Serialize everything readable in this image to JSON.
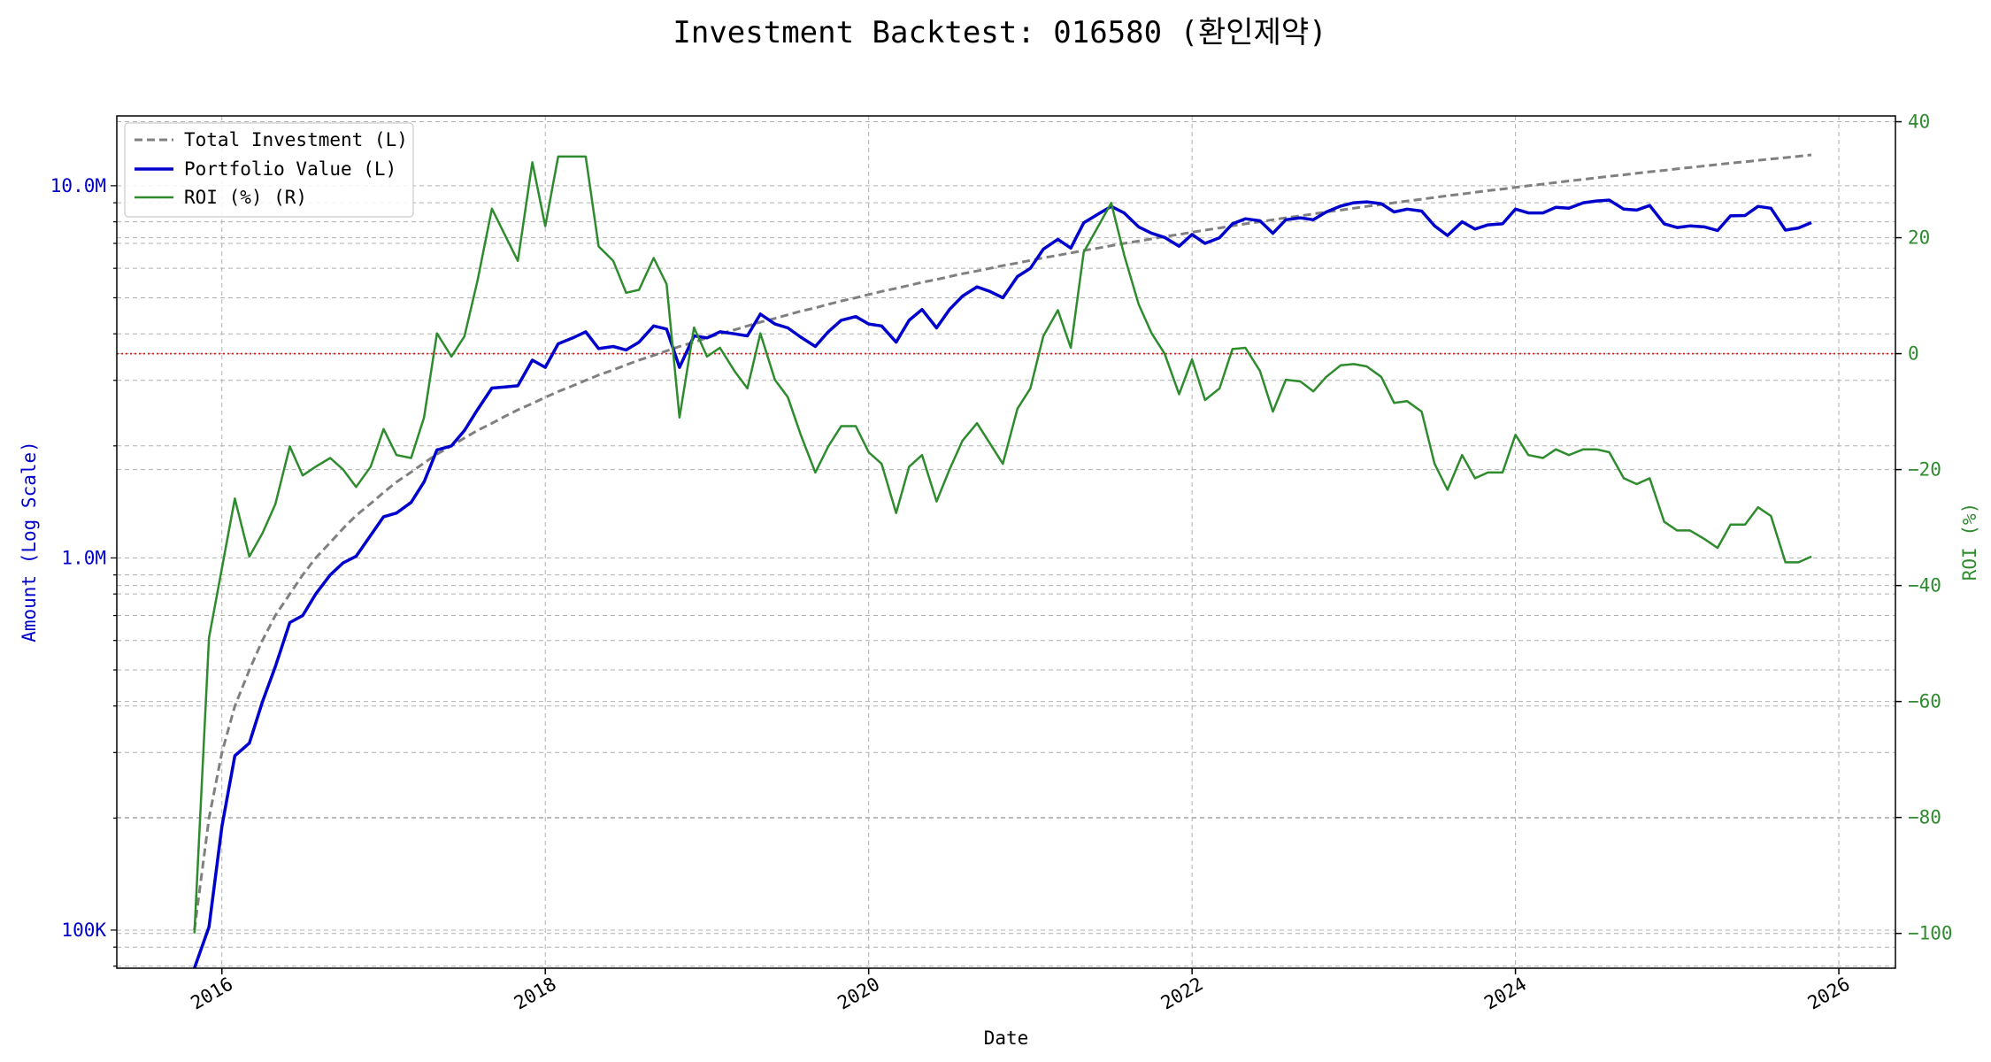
{
  "chart_data": {
    "type": "line",
    "title": "Investment Backtest: 016580 (환인제약)",
    "xlabel": "Date",
    "ylabel_left": "Amount (Log Scale)",
    "ylabel_right": "ROI (%)",
    "x_ticks": [
      "2016",
      "2018",
      "2020",
      "2022",
      "2024",
      "2026"
    ],
    "y_left_ticks": [
      {
        "value": 100000,
        "label": "100K"
      },
      {
        "value": 1000000,
        "label": "1.0M"
      },
      {
        "value": 10000000,
        "label": "10.0M"
      }
    ],
    "y_right_ticks": [
      -100,
      -80,
      -60,
      -40,
      -20,
      0,
      20,
      40
    ],
    "xlim": [
      2015.35,
      2026.35
    ],
    "ylim_left": [
      79000,
      15400000
    ],
    "ylim_right": [
      -106,
      41
    ],
    "yscale_left": "log",
    "grid": true,
    "legend_position": "top-left",
    "reference_line": {
      "axis": "right",
      "value": 0,
      "color": "#e41a1c",
      "style": "dotted"
    },
    "colors": {
      "total_investment": "#808080",
      "portfolio_value": "#0000cc",
      "roi": "#2e8b2e"
    },
    "x": [
      2015.83,
      2015.92,
      2016.0,
      2016.08,
      2016.17,
      2016.25,
      2016.33,
      2016.42,
      2016.5,
      2016.58,
      2016.67,
      2016.75,
      2016.83,
      2016.92,
      2017.0,
      2017.08,
      2017.17,
      2017.25,
      2017.33,
      2017.42,
      2017.5,
      2017.58,
      2017.67,
      2017.75,
      2017.83,
      2017.92,
      2018.0,
      2018.08,
      2018.17,
      2018.25,
      2018.33,
      2018.42,
      2018.5,
      2018.58,
      2018.67,
      2018.75,
      2018.83,
      2018.92,
      2019.0,
      2019.08,
      2019.17,
      2019.25,
      2019.33,
      2019.42,
      2019.5,
      2019.58,
      2019.67,
      2019.75,
      2019.83,
      2019.92,
      2020.0,
      2020.08,
      2020.17,
      2020.25,
      2020.33,
      2020.42,
      2020.5,
      2020.58,
      2020.67,
      2020.75,
      2020.83,
      2020.92,
      2021.0,
      2021.08,
      2021.17,
      2021.25,
      2021.33,
      2021.42,
      2021.5,
      2021.58,
      2021.67,
      2021.75,
      2021.83,
      2021.92,
      2022.0,
      2022.08,
      2022.17,
      2022.25,
      2022.33,
      2022.42,
      2022.5,
      2022.58,
      2022.67,
      2022.75,
      2022.83,
      2022.92,
      2023.0,
      2023.08,
      2023.17,
      2023.25,
      2023.33,
      2023.42,
      2023.5,
      2023.58,
      2023.67,
      2023.75,
      2023.83,
      2023.92,
      2024.0,
      2024.08,
      2024.17,
      2024.25,
      2024.33,
      2024.42,
      2024.5,
      2024.58,
      2024.67,
      2024.75,
      2024.83,
      2024.92,
      2025.0,
      2025.08,
      2025.17,
      2025.25,
      2025.33,
      2025.42,
      2025.5,
      2025.58,
      2025.67,
      2025.75,
      2025.83
    ],
    "series": [
      {
        "name": "Total Investment (L)",
        "style": "dashed",
        "axis": "left",
        "values": [
          100000,
          200000,
          300000,
          400000,
          500000,
          600000,
          700000,
          800000,
          900000,
          1000000,
          1100000,
          1200000,
          1300000,
          1400000,
          1500000,
          1600000,
          1700000,
          1800000,
          1900000,
          2000000,
          2100000,
          2200000,
          2300000,
          2400000,
          2500000,
          2600000,
          2700000,
          2800000,
          2900000,
          3000000,
          3100000,
          3200000,
          3300000,
          3400000,
          3500000,
          3600000,
          3700000,
          3800000,
          3900000,
          4000000,
          4100000,
          4200000,
          4300000,
          4400000,
          4500000,
          4600000,
          4700000,
          4800000,
          4900000,
          5000000,
          5100000,
          5200000,
          5300000,
          5400000,
          5500000,
          5600000,
          5700000,
          5800000,
          5900000,
          6000000,
          6100000,
          6200000,
          6300000,
          6400000,
          6500000,
          6600000,
          6700000,
          6800000,
          6900000,
          7000000,
          7100000,
          7200000,
          7300000,
          7400000,
          7500000,
          7600000,
          7700000,
          7800000,
          7900000,
          8000000,
          8100000,
          8200000,
          8300000,
          8400000,
          8500000,
          8600000,
          8700000,
          8800000,
          8900000,
          9000000,
          9100000,
          9200000,
          9300000,
          9400000,
          9500000,
          9600000,
          9700000,
          9800000,
          9900000,
          10000000,
          10100000,
          10200000,
          10300000,
          10400000,
          10500000,
          10600000,
          10700000,
          10800000,
          10900000,
          11000000,
          11100000,
          11200000,
          11300000,
          11400000,
          11500000,
          11600000,
          11700000,
          11800000,
          11900000,
          12000000,
          12100000
        ]
      },
      {
        "name": "Portfolio Value (L)",
        "style": "solid",
        "axis": "left",
        "values": [
          null,
          102000,
          190000,
          294000,
          318000,
          410000,
          510000,
          670000,
          700000,
          800000,
          900000,
          970000,
          1010000,
          1150000,
          1290000,
          1320000,
          1410000,
          1600000,
          1950000,
          2000000,
          2200000,
          2500000,
          2860000,
          2880000,
          2900000,
          3400000,
          3250000,
          3760000,
          3900000,
          4050000,
          3650000,
          3700000,
          3620000,
          3800000,
          4200000,
          4120000,
          3250000,
          3950000,
          3900000,
          4050000,
          4000000,
          3950000,
          4520000,
          4250000,
          4150000,
          3920000,
          3700000,
          4050000,
          4350000,
          4450000,
          4250000,
          4200000,
          3800000,
          4350000,
          4650000,
          4150000,
          4650000,
          5050000,
          5350000,
          5200000,
          5000000,
          5700000,
          6000000,
          6750000,
          7180000,
          6800000,
          7950000,
          8400000,
          8800000,
          8450000,
          7750000,
          7450000,
          7260000,
          6880000,
          7400000,
          7000000,
          7250000,
          7900000,
          8150000,
          8050000,
          7450000,
          8100000,
          8200000,
          8100000,
          8500000,
          8820000,
          9000000,
          9050000,
          8950000,
          8500000,
          8650000,
          8550000,
          7800000,
          7350000,
          8000000,
          7650000,
          7850000,
          7900000,
          8650000,
          8450000,
          8450000,
          8750000,
          8700000,
          9000000,
          9100000,
          9150000,
          8650000,
          8600000,
          8850000,
          7900000,
          7720000,
          7800000,
          7750000,
          7580000,
          8300000,
          8320000,
          8800000,
          8700000,
          7600000,
          7700000,
          7960000
        ]
      },
      {
        "name": "ROI (%) (R)",
        "style": "solid",
        "axis": "right",
        "values": [
          -100,
          -49,
          -37,
          -25,
          -35,
          -31,
          -26,
          -16,
          -21,
          -19.5,
          -18,
          -20,
          -23,
          -19.5,
          -13,
          -17.5,
          -18,
          -11,
          3.5,
          -0.5,
          3,
          12.5,
          25,
          20.5,
          16,
          33,
          22,
          34,
          34,
          34,
          18.5,
          16,
          10.5,
          11,
          16.5,
          12,
          -11,
          4.5,
          -0.5,
          1,
          -3,
          -6,
          3.5,
          -4.5,
          -7.5,
          -14,
          -20.5,
          -16,
          -12.5,
          -12.5,
          -17,
          -19,
          -27.5,
          -19.5,
          -17.5,
          -25.5,
          -20,
          -15,
          -12,
          -15.5,
          -19,
          -9.5,
          -6,
          3,
          7.5,
          1,
          17.5,
          22,
          26,
          17,
          8.5,
          3.5,
          0,
          -7,
          -1,
          -8,
          -6,
          0.8,
          1,
          -3,
          -10,
          -4.5,
          -4.8,
          -6.5,
          -4,
          -2,
          -1.8,
          -2.2,
          -4,
          -8.5,
          -8.2,
          -10,
          -19,
          -23.5,
          -17.5,
          -21.5,
          -20.5,
          -20.5,
          -14,
          -17.5,
          -18,
          -16.5,
          -17.5,
          -16.5,
          -16.5,
          -17,
          -21.5,
          -22.5,
          -21.5,
          -29,
          -30.5,
          -30.5,
          -32,
          -33.5,
          -29.5,
          -29.5,
          -26.5,
          -28,
          -36,
          -36,
          -35
        ]
      }
    ]
  }
}
